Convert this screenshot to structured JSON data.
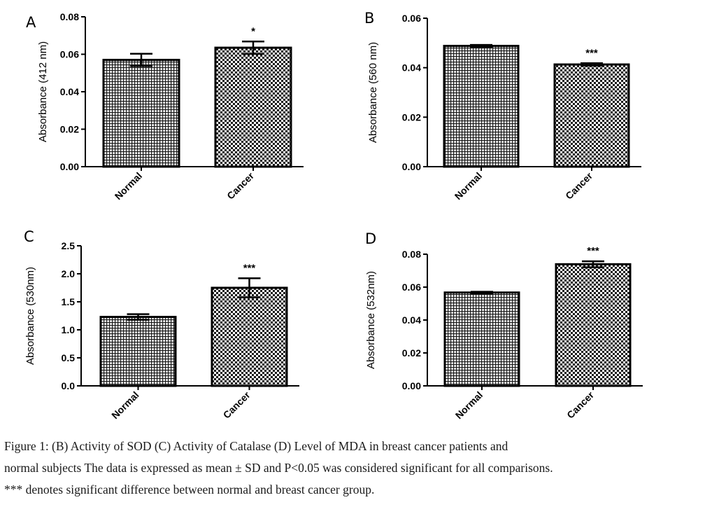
{
  "chart_data": [
    {
      "panel": "A",
      "type": "bar",
      "categories": [
        "Normal",
        "Cancer"
      ],
      "values": [
        0.057,
        0.0635
      ],
      "errors": [
        0.0033,
        0.0033
      ],
      "significance": [
        "",
        "*"
      ],
      "ylabel": "Absorbance (412 nm)",
      "ylim": [
        0,
        0.08
      ],
      "yticks": [
        "0.00",
        "0.02",
        "0.04",
        "0.06",
        "0.08"
      ],
      "grid": false
    },
    {
      "panel": "B",
      "type": "bar",
      "categories": [
        "Normal",
        "Cancer"
      ],
      "values": [
        0.0488,
        0.0413
      ],
      "errors": [
        0.0004,
        0.0005
      ],
      "significance": [
        "",
        "***"
      ],
      "ylabel": "Absorbance (560 nm)",
      "ylim": [
        0,
        0.06
      ],
      "yticks": [
        "0.00",
        "0.02",
        "0.04",
        "0.06"
      ],
      "grid": false
    },
    {
      "panel": "C",
      "type": "bar",
      "categories": [
        "Normal",
        "Cancer"
      ],
      "values": [
        1.23,
        1.75
      ],
      "errors": [
        0.05,
        0.17
      ],
      "significance": [
        "",
        "***"
      ],
      "ylabel": "Absorbance (530nm)",
      "ylim": [
        0,
        2.5
      ],
      "yticks": [
        "0.0",
        "0.5",
        "1.0",
        "1.5",
        "2.0",
        "2.5"
      ],
      "grid": false
    },
    {
      "panel": "D",
      "type": "bar",
      "categories": [
        "Normal",
        "Cancer"
      ],
      "values": [
        0.0567,
        0.0739
      ],
      "errors": [
        0.0005,
        0.0018
      ],
      "significance": [
        "",
        "***"
      ],
      "ylabel": "Absorbance (532nm)",
      "ylim": [
        0,
        0.08
      ],
      "yticks": [
        "0.00",
        "0.02",
        "0.04",
        "0.06",
        "0.08"
      ],
      "grid": false
    }
  ],
  "caption": {
    "line1": "Figure 1: (B) Activity of SOD (C) Activity of Catalase (D) Level  of  MDA  in  breast  cancer  patients  and",
    "line2": "normal subjects The data is expressed as mean ± SD and P<0.05  was considered significant for all comparisons.",
    "line3": " *** denotes significant difference between normal and breast cancer group."
  },
  "colors": {
    "ink": "#000000",
    "fill_light": "#ffffff"
  }
}
